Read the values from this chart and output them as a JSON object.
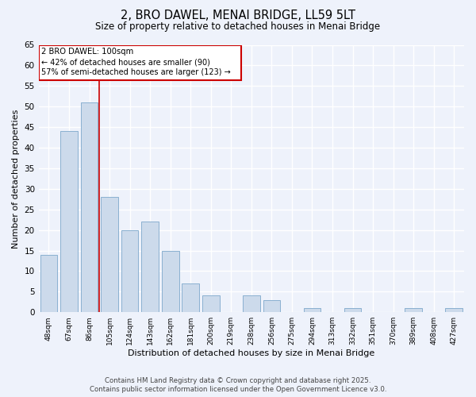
{
  "title": "2, BRO DAWEL, MENAI BRIDGE, LL59 5LT",
  "subtitle": "Size of property relative to detached houses in Menai Bridge",
  "xlabel": "Distribution of detached houses by size in Menai Bridge",
  "ylabel": "Number of detached properties",
  "categories": [
    "48sqm",
    "67sqm",
    "86sqm",
    "105sqm",
    "124sqm",
    "143sqm",
    "162sqm",
    "181sqm",
    "200sqm",
    "219sqm",
    "238sqm",
    "256sqm",
    "275sqm",
    "294sqm",
    "313sqm",
    "332sqm",
    "351sqm",
    "370sqm",
    "389sqm",
    "408sqm",
    "427sqm"
  ],
  "values": [
    14,
    44,
    51,
    28,
    20,
    22,
    15,
    7,
    4,
    0,
    4,
    3,
    0,
    1,
    0,
    1,
    0,
    0,
    1,
    0,
    1
  ],
  "bar_color": "#ccdaeb",
  "bar_edge_color": "#8ab0d0",
  "ylim": [
    0,
    65
  ],
  "yticks": [
    0,
    5,
    10,
    15,
    20,
    25,
    30,
    35,
    40,
    45,
    50,
    55,
    60,
    65
  ],
  "marker_label": "2 BRO DAWEL: 100sqm",
  "annotation_line1": "← 42% of detached houses are smaller (90)",
  "annotation_line2": "57% of semi-detached houses are larger (123) →",
  "marker_color": "#cc0000",
  "annotation_box_color": "#cc0000",
  "footnote1": "Contains HM Land Registry data © Crown copyright and database right 2025.",
  "footnote2": "Contains public sector information licensed under the Open Government Licence v3.0.",
  "bg_color": "#eef2fb",
  "plot_bg_color": "#eef2fb",
  "grid_color": "#ffffff"
}
